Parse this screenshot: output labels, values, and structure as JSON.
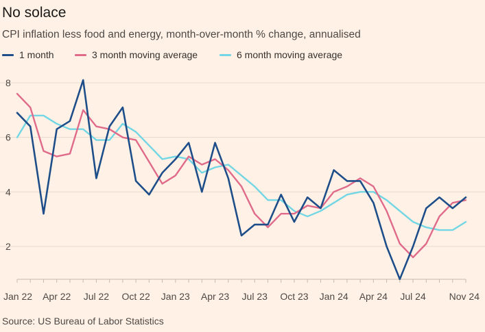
{
  "title": "No solace",
  "subtitle": "CPI inflation less food and energy, month-over-month % change, annualised",
  "source": "Source: US Bureau of Labor Statistics",
  "chart_data": {
    "type": "line",
    "x": [
      "Jan 22",
      "Feb 22",
      "Mar 22",
      "Apr 22",
      "May 22",
      "Jun 22",
      "Jul 22",
      "Aug 22",
      "Sep 22",
      "Oct 22",
      "Nov 22",
      "Dec 22",
      "Jan 23",
      "Feb 23",
      "Mar 23",
      "Apr 23",
      "May 23",
      "Jun 23",
      "Jul 23",
      "Aug 23",
      "Sep 23",
      "Oct 23",
      "Nov 23",
      "Dec 23",
      "Jan 24",
      "Feb 24",
      "Mar 24",
      "Apr 24",
      "May 24",
      "Jun 24",
      "Jul 24",
      "Aug 24",
      "Sep 24",
      "Oct 24",
      "Nov 24"
    ],
    "x_tick_labels": [
      "Jan 22",
      "Apr 22",
      "Jul 22",
      "Oct 22",
      "Jan 23",
      "Apr 23",
      "Jul 23",
      "Oct 23",
      "Jan 24",
      "Apr 24",
      "Jul 24",
      "Nov 24"
    ],
    "y_ticks": [
      2,
      4,
      6,
      8
    ],
    "ylim": [
      1.2,
      8.4
    ],
    "grid": true,
    "legend_position": "top-left",
    "series": [
      {
        "name": "1 month",
        "color": "#1D4E89",
        "values": [
          6.9,
          6.4,
          3.2,
          6.3,
          6.6,
          8.1,
          4.5,
          6.4,
          7.1,
          4.4,
          3.9,
          4.7,
          5.2,
          5.8,
          4.0,
          5.8,
          4.5,
          2.4,
          2.8,
          2.8,
          3.9,
          2.9,
          3.8,
          3.4,
          4.8,
          4.4,
          4.4,
          3.6,
          2.0,
          0.8,
          2.0,
          3.4,
          3.8,
          3.4,
          3.8
        ]
      },
      {
        "name": "3 month moving average",
        "color": "#E06A8A",
        "values": [
          7.6,
          7.1,
          5.5,
          5.3,
          5.4,
          7.0,
          6.4,
          6.3,
          6.0,
          5.9,
          5.1,
          4.3,
          4.6,
          5.3,
          5.0,
          5.2,
          4.8,
          4.2,
          3.2,
          2.7,
          3.2,
          3.2,
          3.5,
          3.4,
          4.0,
          4.2,
          4.5,
          4.2,
          3.3,
          2.1,
          1.6,
          2.1,
          3.1,
          3.6,
          3.7
        ]
      },
      {
        "name": "6 month moving average",
        "color": "#72D6E4",
        "values": [
          6.0,
          6.8,
          6.8,
          6.5,
          6.3,
          6.3,
          5.9,
          5.9,
          6.5,
          6.2,
          5.7,
          5.2,
          5.3,
          5.2,
          4.7,
          4.9,
          5.0,
          4.6,
          4.2,
          3.7,
          3.7,
          3.3,
          3.1,
          3.3,
          3.6,
          3.9,
          4.0,
          4.0,
          3.7,
          3.3,
          2.9,
          2.7,
          2.6,
          2.6,
          2.9
        ]
      }
    ]
  }
}
